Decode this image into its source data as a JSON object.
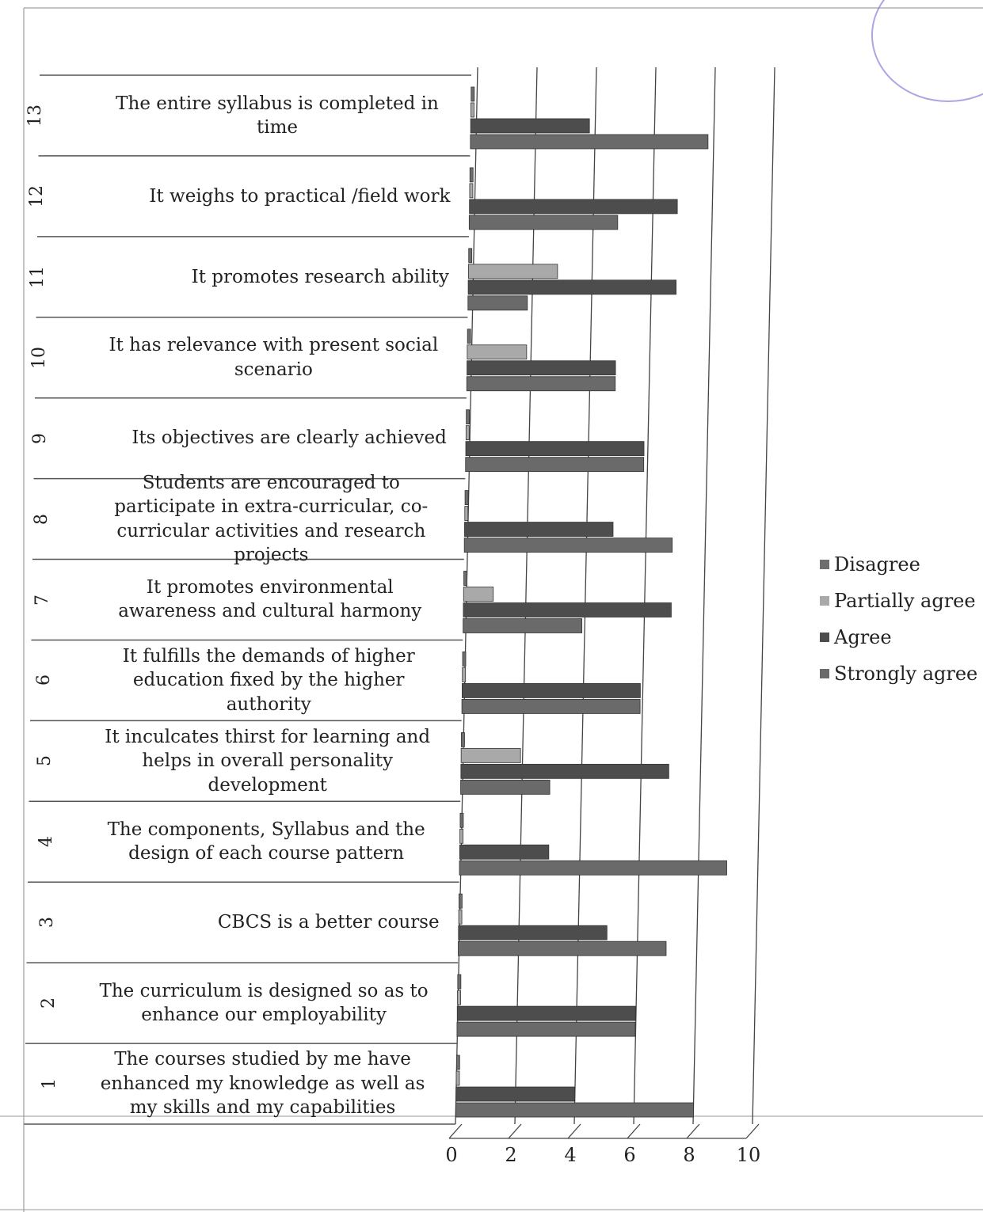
{
  "chart_data": {
    "type": "bar",
    "orientation": "horizontal",
    "categories": [
      {
        "num": "1",
        "label": "The courses studied by me have enhanced my knowledge as well as my skills and my capabilities"
      },
      {
        "num": "2",
        "label": "The curriculum is designed so as to enhance our employability"
      },
      {
        "num": "3",
        "label": "CBCS is a better course"
      },
      {
        "num": "4",
        "label": "The components, Syllabus and the design of each course pattern"
      },
      {
        "num": "5",
        "label": "It inculcates thirst for learning and helps in overall personality development"
      },
      {
        "num": "6",
        "label": "It fulfills the demands of higher education fixed by the higher authority"
      },
      {
        "num": "7",
        "label": "It promotes environmental awareness and cultural harmony"
      },
      {
        "num": "8",
        "label": "Students are encouraged to participate in extra-curricular, co-curricular activities and research projects"
      },
      {
        "num": "9",
        "label": "Its objectives are clearly achieved"
      },
      {
        "num": "10",
        "label": "It has relevance with present social scenario"
      },
      {
        "num": "11",
        "label": "It promotes research ability"
      },
      {
        "num": "12",
        "label": "It weighs to practical /field work"
      },
      {
        "num": "13",
        "label": "The entire syllabus is completed in time"
      }
    ],
    "series": [
      {
        "name": "Disagree",
        "color": "#6e6e6e",
        "values": [
          0,
          0,
          0,
          0,
          0,
          0,
          0,
          0,
          0,
          0,
          0,
          0,
          0
        ]
      },
      {
        "name": "Partially agree",
        "color": "#a9a9a9",
        "values": [
          0,
          0,
          0,
          0,
          2,
          0,
          1,
          0,
          0,
          2,
          3,
          0,
          0
        ]
      },
      {
        "name": "Agree",
        "color": "#4d4d4d",
        "values": [
          4,
          6,
          5,
          3,
          7,
          6,
          7,
          5,
          6,
          5,
          7,
          7,
          4
        ]
      },
      {
        "name": "Strongly agree",
        "color": "#6a6a6a",
        "values": [
          8,
          6,
          7,
          9,
          3,
          6,
          4,
          7,
          6,
          5,
          2,
          5,
          8
        ]
      }
    ],
    "xlim": [
      0,
      10
    ],
    "xticks": [
      "0",
      "2",
      "4",
      "6",
      "8",
      "10"
    ],
    "grid": true,
    "legend_position": "right",
    "title": "",
    "xlabel": "",
    "ylabel": ""
  }
}
